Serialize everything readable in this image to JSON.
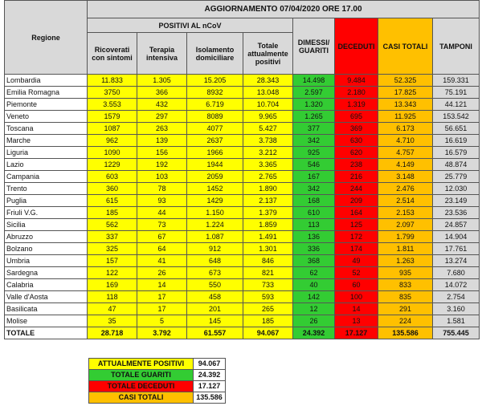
{
  "header": {
    "title": "AGGIORNAMENTO 07/04/2020 ORE 17.00",
    "region_label": "Regione",
    "group_label": "POSITIVI AL nCoV",
    "columns": [
      "Ricoverati con sintomi",
      "Terapia intensiva",
      "Isolamento domiciliare",
      "Totale attualmente positivi",
      "DIMESSI/ GUARITI",
      "DECEDUTI",
      "CASI TOTALI",
      "TAMPONI"
    ]
  },
  "table": {
    "rows": [
      [
        "Lombardia",
        "11.833",
        "1.305",
        "15.205",
        "28.343",
        "14.498",
        "9.484",
        "52.325",
        "159.331"
      ],
      [
        "Emilia Romagna",
        "3750",
        "366",
        "8932",
        "13.048",
        "2.597",
        "2.180",
        "17.825",
        "75.191"
      ],
      [
        "Piemonte",
        "3.553",
        "432",
        "6.719",
        "10.704",
        "1.320",
        "1.319",
        "13.343",
        "44.121"
      ],
      [
        "Veneto",
        "1579",
        "297",
        "8089",
        "9.965",
        "1.265",
        "695",
        "11.925",
        "153.542"
      ],
      [
        "Toscana",
        "1087",
        "263",
        "4077",
        "5.427",
        "377",
        "369",
        "6.173",
        "56.651"
      ],
      [
        "Marche",
        "962",
        "139",
        "2637",
        "3.738",
        "342",
        "630",
        "4.710",
        "16.619"
      ],
      [
        "Liguria",
        "1090",
        "156",
        "1966",
        "3.212",
        "925",
        "620",
        "4.757",
        "16.579"
      ],
      [
        "Lazio",
        "1229",
        "192",
        "1944",
        "3.365",
        "546",
        "238",
        "4.149",
        "48.874"
      ],
      [
        "Campania",
        "603",
        "103",
        "2059",
        "2.765",
        "167",
        "216",
        "3.148",
        "25.779"
      ],
      [
        "Trento",
        "360",
        "78",
        "1452",
        "1.890",
        "342",
        "244",
        "2.476",
        "12.030"
      ],
      [
        "Puglia",
        "615",
        "93",
        "1429",
        "2.137",
        "168",
        "209",
        "2.514",
        "23.149"
      ],
      [
        "Friuli V.G.",
        "185",
        "44",
        "1.150",
        "1.379",
        "610",
        "164",
        "2.153",
        "23.536"
      ],
      [
        "Sicilia",
        "562",
        "73",
        "1.224",
        "1.859",
        "113",
        "125",
        "2.097",
        "24.857"
      ],
      [
        "Abruzzo",
        "337",
        "67",
        "1.087",
        "1.491",
        "136",
        "172",
        "1.799",
        "14.904"
      ],
      [
        "Bolzano",
        "325",
        "64",
        "912",
        "1.301",
        "336",
        "174",
        "1.811",
        "17.761"
      ],
      [
        "Umbria",
        "157",
        "41",
        "648",
        "846",
        "368",
        "49",
        "1.263",
        "13.274"
      ],
      [
        "Sardegna",
        "122",
        "26",
        "673",
        "821",
        "62",
        "52",
        "935",
        "7.680"
      ],
      [
        "Calabria",
        "169",
        "14",
        "550",
        "733",
        "40",
        "60",
        "833",
        "14.072"
      ],
      [
        "Valle d'Aosta",
        "118",
        "17",
        "458",
        "593",
        "142",
        "100",
        "835",
        "2.754"
      ],
      [
        "Basilicata",
        "47",
        "17",
        "201",
        "265",
        "12",
        "14",
        "291",
        "3.160"
      ],
      [
        "Molise",
        "35",
        "5",
        "145",
        "185",
        "26",
        "13",
        "224",
        "1.581"
      ],
      [
        "TOTALE",
        "28.718",
        "3.792",
        "61.557",
        "94.067",
        "24.392",
        "17.127",
        "135.586",
        "755.445"
      ]
    ]
  },
  "summary": {
    "rows": [
      [
        "ATTUALMENTE POSITIVI",
        "94.067"
      ],
      [
        "TOTALE GUARITI",
        "24.392"
      ],
      [
        "TOTALE DECEDUTI",
        "17.127"
      ],
      [
        "CASI TOTALI",
        "135.586"
      ]
    ]
  }
}
